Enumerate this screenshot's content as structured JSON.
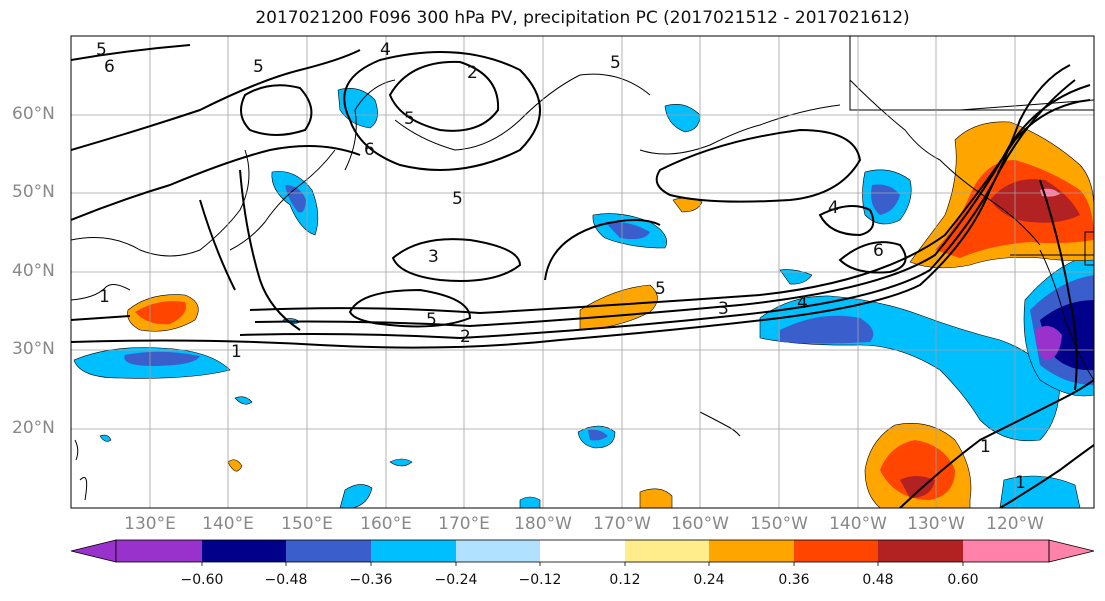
{
  "title": "2017021200 F096 300 hPa PV, precipitation PC (2017021512 - 2017021612)",
  "lat_labels": [
    "60°N",
    "50°N",
    "40°N",
    "30°N",
    "20°N"
  ],
  "lon_labels": [
    "130°E",
    "140°E",
    "150°E",
    "160°E",
    "170°E",
    "180°W",
    "170°W",
    "160°W",
    "150°W",
    "140°W",
    "130°W",
    "120°W"
  ],
  "colorbar": {
    "ticks": [
      "−0.60",
      "−0.48",
      "−0.36",
      "−0.24",
      "−0.12",
      "0.12",
      "0.24",
      "0.36",
      "0.48",
      "0.60"
    ],
    "colors": [
      "#9932cc",
      "#00008b",
      "#3a5fcd",
      "#00bfff",
      "#b0e2ff",
      "#ffffff",
      "#ffec8b",
      "#ffa500",
      "#ff4500",
      "#b22222",
      "#ff82ab"
    ]
  },
  "contour_labels": [
    "5",
    "6",
    "5",
    "4",
    "2",
    "5",
    "5",
    "6",
    "5",
    "3",
    "5",
    "2",
    "3",
    "5",
    "4",
    "4",
    "6",
    "1",
    "1",
    "1",
    "1"
  ]
}
